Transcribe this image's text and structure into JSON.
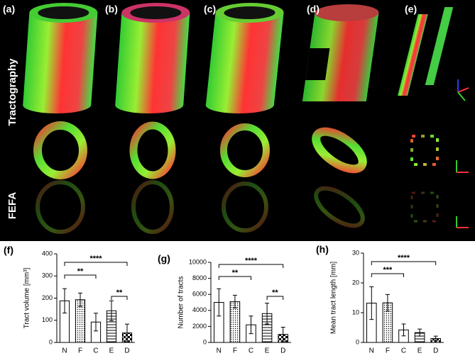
{
  "image_panels": [
    "(a)",
    "(b)",
    "(c)",
    "(d)",
    "(e)"
  ],
  "row_labels": [
    "Tractography",
    "FEFA"
  ],
  "chart_data": [
    {
      "type": "bar",
      "panel": "(f)",
      "y_label": "Tract volume [mm³]",
      "categories": [
        "N",
        "F",
        "C",
        "E",
        "D"
      ],
      "values": [
        188,
        193,
        92,
        143,
        43
      ],
      "errors": [
        55,
        30,
        40,
        45,
        40
      ],
      "ylim": [
        0,
        400
      ],
      "yticks": [
        0,
        100,
        200,
        300,
        400
      ],
      "annotations": [
        "****",
        "**",
        "**"
      ]
    },
    {
      "type": "bar",
      "panel": "(g)",
      "y_label": "Number of tracts",
      "categories": [
        "N",
        "F",
        "C",
        "E",
        "D"
      ],
      "values": [
        5000,
        5100,
        2200,
        3600,
        1000
      ],
      "errors": [
        1700,
        800,
        1100,
        1300,
        900
      ],
      "ylim": [
        0,
        10000
      ],
      "yticks": [
        0,
        2000,
        4000,
        6000,
        8000,
        10000
      ],
      "annotations": [
        "****",
        "**",
        "**"
      ]
    },
    {
      "type": "bar",
      "panel": "(h)",
      "y_label": "Mean tract length [mm]",
      "categories": [
        "N",
        "F",
        "C",
        "E",
        "D"
      ],
      "values": [
        13.2,
        13.3,
        4.2,
        3.3,
        1.3
      ],
      "errors": [
        5.5,
        2.8,
        2,
        1.2,
        0.8
      ],
      "ylim": [
        0,
        30
      ],
      "yticks": [
        0,
        10,
        20,
        30
      ],
      "annotations": [
        "****",
        "***"
      ]
    }
  ]
}
